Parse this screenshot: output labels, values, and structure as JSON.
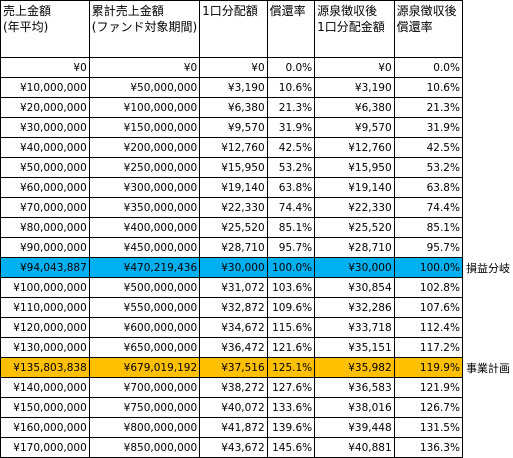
{
  "table": {
    "header": [
      [
        "売上金額",
        "(年平均)"
      ],
      [
        "累計売上金額",
        "(ファンド対象期間)"
      ],
      [
        "1口分配額"
      ],
      [
        "償還率"
      ],
      [
        "源泉徴収後",
        "1口分配金額"
      ],
      [
        "源泉徴収後",
        "償還率"
      ]
    ],
    "rows": [
      [
        "¥0",
        "¥0",
        "¥0",
        "0.0%",
        "¥0",
        "0.0%"
      ],
      [
        "¥10,000,000",
        "¥50,000,000",
        "¥3,190",
        "10.6%",
        "¥3,190",
        "10.6%"
      ],
      [
        "¥20,000,000",
        "¥100,000,000",
        "¥6,380",
        "21.3%",
        "¥6,380",
        "21.3%"
      ],
      [
        "¥30,000,000",
        "¥150,000,000",
        "¥9,570",
        "31.9%",
        "¥9,570",
        "31.9%"
      ],
      [
        "¥40,000,000",
        "¥200,000,000",
        "¥12,760",
        "42.5%",
        "¥12,760",
        "42.5%"
      ],
      [
        "¥50,000,000",
        "¥250,000,000",
        "¥15,950",
        "53.2%",
        "¥15,950",
        "53.2%"
      ],
      [
        "¥60,000,000",
        "¥300,000,000",
        "¥19,140",
        "63.8%",
        "¥19,140",
        "63.8%"
      ],
      [
        "¥70,000,000",
        "¥350,000,000",
        "¥22,330",
        "74.4%",
        "¥22,330",
        "74.4%"
      ],
      [
        "¥80,000,000",
        "¥400,000,000",
        "¥25,520",
        "85.1%",
        "¥25,520",
        "85.1%"
      ],
      [
        "¥90,000,000",
        "¥450,000,000",
        "¥28,710",
        "95.7%",
        "¥28,710",
        "95.7%"
      ],
      [
        "¥94,043,887",
        "¥470,219,436",
        "¥30,000",
        "100.0%",
        "¥30,000",
        "100.0%"
      ],
      [
        "¥100,000,000",
        "¥500,000,000",
        "¥31,072",
        "103.6%",
        "¥30,854",
        "102.8%"
      ],
      [
        "¥110,000,000",
        "¥550,000,000",
        "¥32,872",
        "109.6%",
        "¥32,286",
        "107.6%"
      ],
      [
        "¥120,000,000",
        "¥600,000,000",
        "¥34,672",
        "115.6%",
        "¥33,718",
        "112.4%"
      ],
      [
        "¥130,000,000",
        "¥650,000,000",
        "¥36,472",
        "121.6%",
        "¥35,151",
        "117.2%"
      ],
      [
        "¥135,803,838",
        "¥679,019,192",
        "¥37,516",
        "125.1%",
        "¥35,982",
        "119.9%"
      ],
      [
        "¥140,000,000",
        "¥700,000,000",
        "¥38,272",
        "127.6%",
        "¥36,583",
        "121.9%"
      ],
      [
        "¥150,000,000",
        "¥750,000,000",
        "¥40,072",
        "133.6%",
        "¥38,016",
        "126.7%"
      ],
      [
        "¥160,000,000",
        "¥800,000,000",
        "¥41,872",
        "139.6%",
        "¥39,448",
        "131.5%"
      ],
      [
        "¥170,000,000",
        "¥850,000,000",
        "¥43,672",
        "145.6%",
        "¥40,881",
        "136.3%"
      ]
    ],
    "row_notes": [
      null,
      null,
      null,
      null,
      null,
      null,
      null,
      null,
      null,
      null,
      "損益分岐",
      null,
      null,
      null,
      null,
      "事業計画",
      null,
      null,
      null,
      null
    ]
  }
}
